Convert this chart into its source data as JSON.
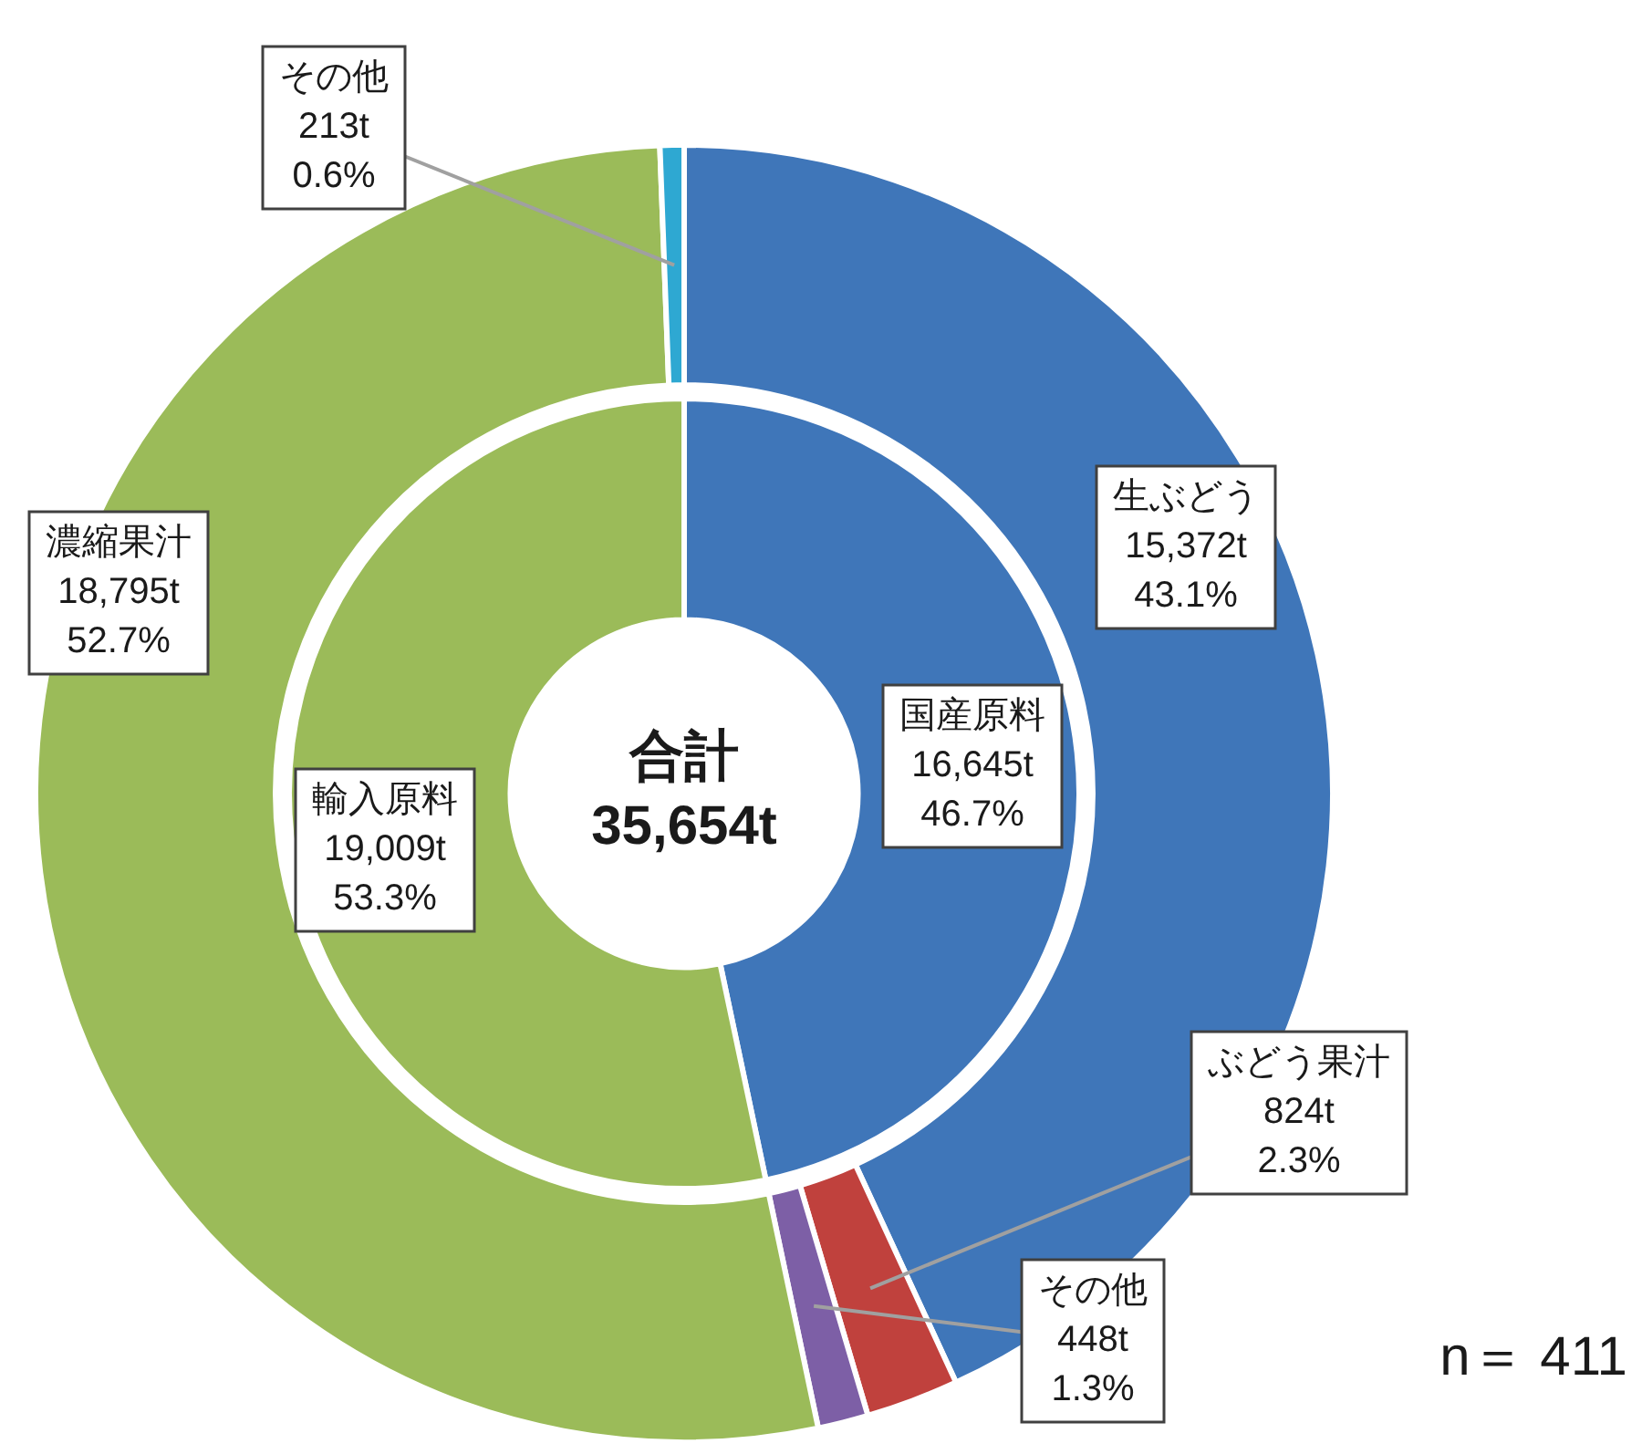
{
  "chart_data": [
    {
      "type": "donut",
      "legend": false,
      "categories": [
        "生ぶどう",
        "ぶどう果汁",
        "その他",
        "濃縮果汁",
        "その他"
      ],
      "values": [
        15372,
        824,
        448,
        18795,
        213
      ],
      "colors": [
        "#3f76b9",
        "#c0413d",
        "#7d5fa6",
        "#9bbb59",
        "#2ea8d2"
      ],
      "value_labels": [
        "15,372t",
        "824t",
        "448t",
        "18,795t",
        "213t"
      ],
      "annotations": [
        "43.1%",
        "2.3%",
        "1.3%",
        "52.7%",
        "0.6%",
        "n＝ 411"
      ]
    },
    {
      "type": "donut",
      "legend": false,
      "categories": [
        "国産原料",
        "輸入原料"
      ],
      "values": [
        16645,
        19009
      ],
      "colors": [
        "#3f76b9",
        "#9bbb59"
      ],
      "value_labels": [
        "16,645t",
        "19,009t"
      ],
      "annotations": [
        "46.7%",
        "53.3%",
        "合計\n35,654t"
      ]
    }
  ]
}
